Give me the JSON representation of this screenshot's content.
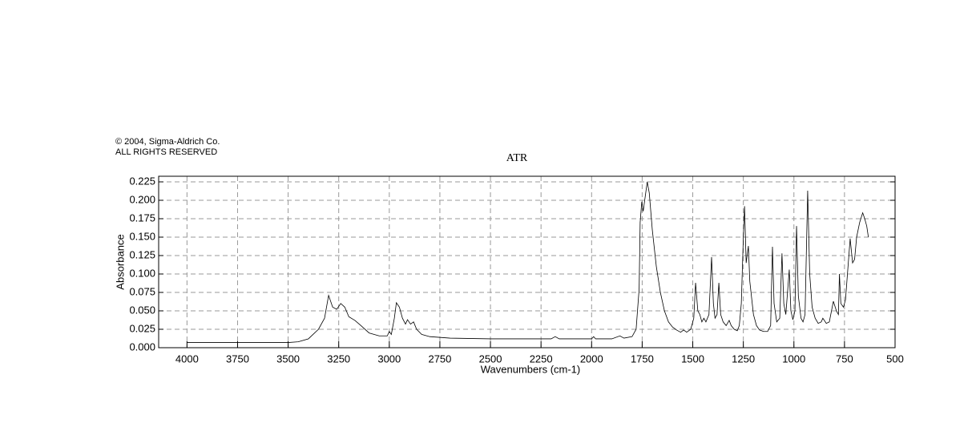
{
  "chart_data": {
    "type": "line",
    "notes": [
      "© 2004, Sigma-Aldrich Co.",
      "ALL RIGHTS RESERVED"
    ],
    "title": "ATR",
    "x_label": "Wavenumbers (cm-1)",
    "y_label": "Absorbance",
    "color": "#000000",
    "grid": true,
    "xlim": [
      4140,
      500
    ],
    "ylim": [
      0,
      0.2326
    ],
    "xticks": [
      4000,
      3750,
      3500,
      3250,
      3000,
      2750,
      2500,
      2250,
      2000,
      1750,
      1500,
      1250,
      1000,
      750,
      500
    ],
    "yticks": [
      {
        "value": 0,
        "label": "0.000"
      },
      {
        "value": 0.025,
        "label": "0.025"
      },
      {
        "value": 0.05,
        "label": "0.050"
      },
      {
        "value": 0.075,
        "label": "0.075"
      },
      {
        "value": 0.1,
        "label": "0.100"
      },
      {
        "value": 0.125,
        "label": "0.125"
      },
      {
        "value": 0.15,
        "label": "0.150"
      },
      {
        "value": 0.175,
        "label": "0.175"
      },
      {
        "value": 0.2,
        "label": "0.200"
      },
      {
        "value": 0.225,
        "label": "0.225"
      }
    ],
    "x": [
      4000,
      3500,
      3450,
      3400,
      3350,
      3320,
      3300,
      3280,
      3260,
      3240,
      3220,
      3200,
      3170,
      3140,
      3100,
      3050,
      3010,
      3000,
      2990,
      2975,
      2965,
      2950,
      2935,
      2920,
      2910,
      2895,
      2880,
      2865,
      2840,
      2800,
      2700,
      2500,
      2200,
      2180,
      2160,
      2000,
      1990,
      1980,
      1900,
      1860,
      1840,
      1800,
      1780,
      1765,
      1760,
      1752,
      1745,
      1735,
      1725,
      1715,
      1700,
      1680,
      1660,
      1640,
      1620,
      1600,
      1580,
      1560,
      1545,
      1530,
      1510,
      1495,
      1486,
      1475,
      1465,
      1455,
      1445,
      1435,
      1420,
      1407,
      1398,
      1390,
      1380,
      1371,
      1362,
      1350,
      1335,
      1320,
      1310,
      1295,
      1280,
      1270,
      1260,
      1250,
      1244,
      1236,
      1225,
      1218,
      1212,
      1200,
      1185,
      1170,
      1150,
      1130,
      1115,
      1106,
      1098,
      1085,
      1070,
      1059,
      1050,
      1040,
      1023,
      1015,
      1005,
      995,
      987,
      978,
      965,
      955,
      945,
      932,
      922,
      910,
      895,
      880,
      865,
      857,
      840,
      825,
      805,
      790,
      780,
      775,
      768,
      755,
      745,
      722,
      710,
      700,
      690,
      675,
      660,
      650,
      640,
      632
    ],
    "values": [
      0.007,
      0.007,
      0.008,
      0.012,
      0.025,
      0.04,
      0.071,
      0.055,
      0.052,
      0.06,
      0.055,
      0.042,
      0.037,
      0.03,
      0.02,
      0.016,
      0.016,
      0.022,
      0.018,
      0.04,
      0.061,
      0.055,
      0.04,
      0.032,
      0.038,
      0.032,
      0.035,
      0.025,
      0.018,
      0.015,
      0.013,
      0.012,
      0.012,
      0.015,
      0.012,
      0.012,
      0.015,
      0.012,
      0.012,
      0.016,
      0.013,
      0.015,
      0.025,
      0.08,
      0.17,
      0.198,
      0.185,
      0.205,
      0.225,
      0.21,
      0.16,
      0.11,
      0.075,
      0.05,
      0.035,
      0.028,
      0.024,
      0.021,
      0.024,
      0.021,
      0.025,
      0.04,
      0.088,
      0.05,
      0.045,
      0.035,
      0.04,
      0.035,
      0.045,
      0.123,
      0.06,
      0.04,
      0.045,
      0.088,
      0.045,
      0.035,
      0.03,
      0.037,
      0.03,
      0.025,
      0.023,
      0.03,
      0.06,
      0.15,
      0.192,
      0.115,
      0.138,
      0.09,
      0.075,
      0.045,
      0.03,
      0.024,
      0.022,
      0.022,
      0.03,
      0.137,
      0.06,
      0.035,
      0.04,
      0.128,
      0.06,
      0.045,
      0.106,
      0.05,
      0.038,
      0.05,
      0.165,
      0.07,
      0.04,
      0.035,
      0.045,
      0.213,
      0.1,
      0.055,
      0.04,
      0.033,
      0.035,
      0.04,
      0.033,
      0.035,
      0.063,
      0.05,
      0.045,
      0.1,
      0.06,
      0.055,
      0.065,
      0.148,
      0.115,
      0.12,
      0.15,
      0.17,
      0.183,
      0.175,
      0.165,
      0.15
    ]
  }
}
